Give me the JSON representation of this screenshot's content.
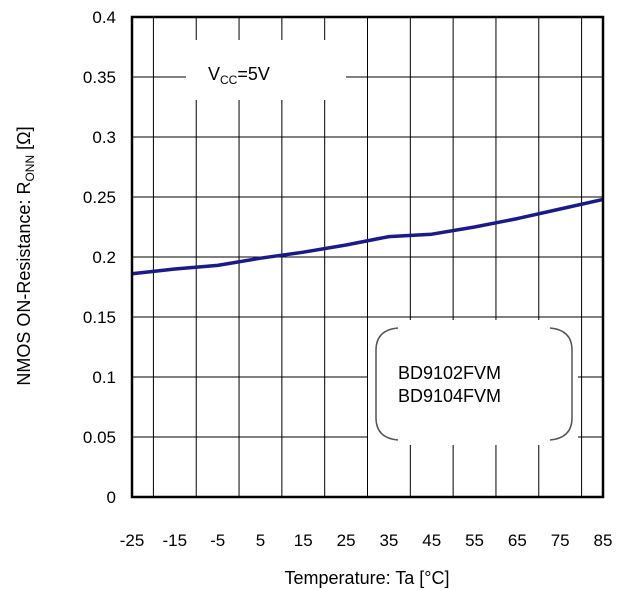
{
  "chart_data": {
    "type": "line",
    "title": "",
    "xlabel": "Temperature: Ta [°C]",
    "ylabel_main": "NMOS ON-Resistance: R",
    "ylabel_sub": "ONN",
    "ylabel_unit": " [Ω]",
    "xlim": [
      -25,
      85
    ],
    "ylim": [
      0,
      0.4
    ],
    "x_ticks": [
      -25,
      -15,
      -5,
      5,
      15,
      25,
      35,
      45,
      55,
      65,
      75,
      85
    ],
    "x_tick_labels": [
      "-25",
      "-15",
      "-5",
      "5",
      "15",
      "25",
      "35",
      "45",
      "55",
      "65",
      "75",
      "85"
    ],
    "y_ticks": [
      0,
      0.05,
      0.1,
      0.15,
      0.2,
      0.25,
      0.3,
      0.35,
      0.4
    ],
    "y_tick_labels": [
      "0",
      "0.05",
      "0.1",
      "0.15",
      "0.2",
      "0.25",
      "0.3",
      "0.35",
      "0.4"
    ],
    "grid": true,
    "series": [
      {
        "color": "#1a1a8c",
        "x": [
          -25,
          -15,
          -5,
          5,
          15,
          25,
          35,
          45,
          55,
          65,
          75,
          85
        ],
        "y": [
          0.186,
          0.19,
          0.193,
          0.199,
          0.204,
          0.21,
          0.217,
          0.219,
          0.225,
          0.232,
          0.24,
          0.248
        ]
      }
    ],
    "annotations": {
      "vcc_main": "V",
      "vcc_sub": "CC",
      "vcc_rest": "=5V",
      "part_numbers": [
        "BD9102FVM",
        "BD9104FVM"
      ]
    }
  }
}
